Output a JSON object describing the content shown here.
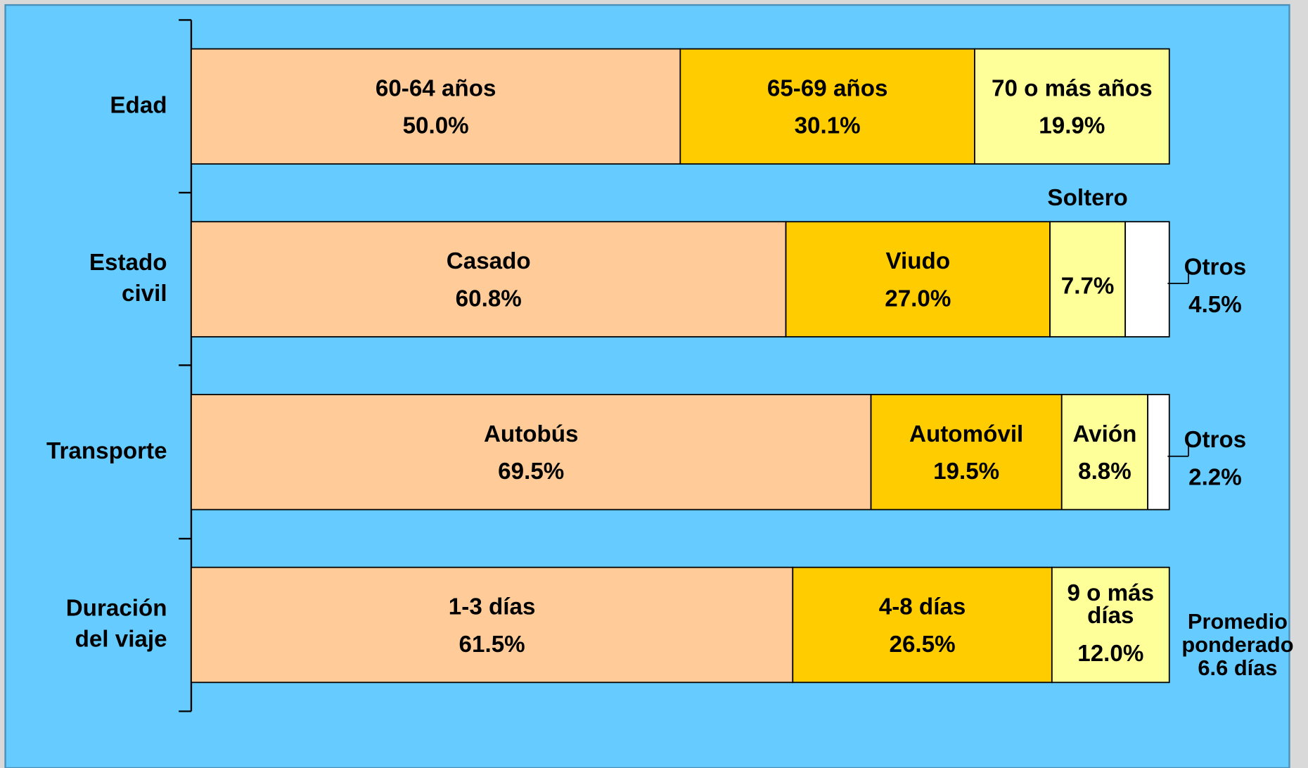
{
  "chart_data": {
    "type": "stacked_bar",
    "categories": [
      "Edad",
      "Estado civil",
      "Transporte",
      "Duración del viaje"
    ],
    "xlim": [
      0,
      100
    ],
    "series": [
      {
        "color": "#ffcc99",
        "labels": [
          "60-64 años",
          "Casado",
          "Autobús",
          "1-3 días"
        ],
        "values": [
          50.0,
          60.8,
          69.5,
          61.5
        ],
        "value_labels": [
          "50.0%",
          "60.8%",
          "69.5%",
          "61.5%"
        ]
      },
      {
        "color": "#ffcc00",
        "labels": [
          "65-69 años",
          "Viudo",
          "Automóvil",
          "4-8 días"
        ],
        "values": [
          30.1,
          27.0,
          19.5,
          26.5
        ],
        "value_labels": [
          "30.1%",
          "27.0%",
          "19.5%",
          "26.5%"
        ]
      },
      {
        "color": "#ffff99",
        "labels": [
          "70 o más años",
          "Soltero",
          "Avión",
          "9 o más días"
        ],
        "values": [
          19.9,
          7.7,
          8.8,
          12.0
        ],
        "value_labels": [
          "19.9%",
          "7.7%",
          "8.8%",
          "12.0%"
        ]
      },
      {
        "color": "#ffffff",
        "labels": [
          null,
          "Otros",
          "Otros",
          null
        ],
        "values": [
          null,
          4.5,
          2.2,
          null
        ],
        "value_labels": [
          null,
          "4.5%",
          "2.2%",
          null
        ]
      }
    ],
    "annotation": {
      "lines": [
        "Promedio",
        "ponderado",
        "6.6 días"
      ],
      "color": "#990000"
    }
  }
}
